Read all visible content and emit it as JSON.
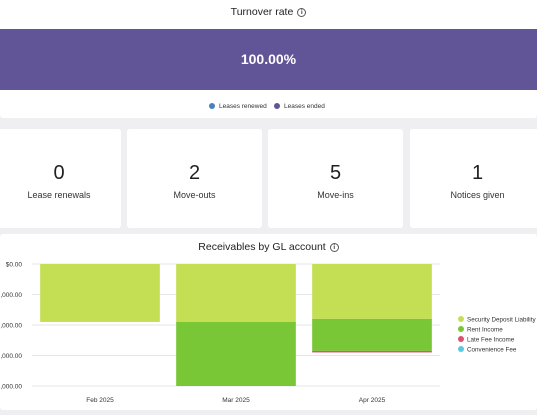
{
  "turnover": {
    "title": "Turnover rate",
    "info_glyph": "i",
    "bar_value": "100.00%",
    "bar_color": "#615597",
    "legend": [
      {
        "label": "Leases renewed",
        "color": "#4a7fc1"
      },
      {
        "label": "Leases ended",
        "color": "#615597"
      }
    ]
  },
  "stats": [
    {
      "value": "0",
      "label": "Lease renewals"
    },
    {
      "value": "2",
      "label": "Move-outs"
    },
    {
      "value": "5",
      "label": "Move-ins"
    },
    {
      "value": "1",
      "label": "Notices given"
    }
  ],
  "receivables": {
    "title": "Receivables by GL account",
    "info_glyph": "i"
  },
  "chart_data": {
    "type": "bar",
    "stacked": true,
    "title": "Receivables by GL account",
    "categories": [
      "Feb 2025",
      "Mar 2025",
      "Apr 2025"
    ],
    "y_tick_labels": [
      "$0.00",
      ",000.00",
      ",000.00",
      ",000.00",
      ",000.00"
    ],
    "ylim": [
      -4000,
      0
    ],
    "grid": true,
    "legend_position": "right",
    "series": [
      {
        "name": "Security Deposit Liability",
        "color": "#c5df55",
        "values": [
          -1900,
          -1900,
          -1800
        ]
      },
      {
        "name": "Rent Income",
        "color": "#79c737",
        "values": [
          0,
          -2100,
          -1050
        ]
      },
      {
        "name": "Late Fee Income",
        "color": "#d9536f",
        "values": [
          0,
          0,
          -50
        ]
      },
      {
        "name": "Convenience Fee",
        "color": "#5cc8e0",
        "values": [
          0,
          0,
          0
        ]
      }
    ]
  }
}
